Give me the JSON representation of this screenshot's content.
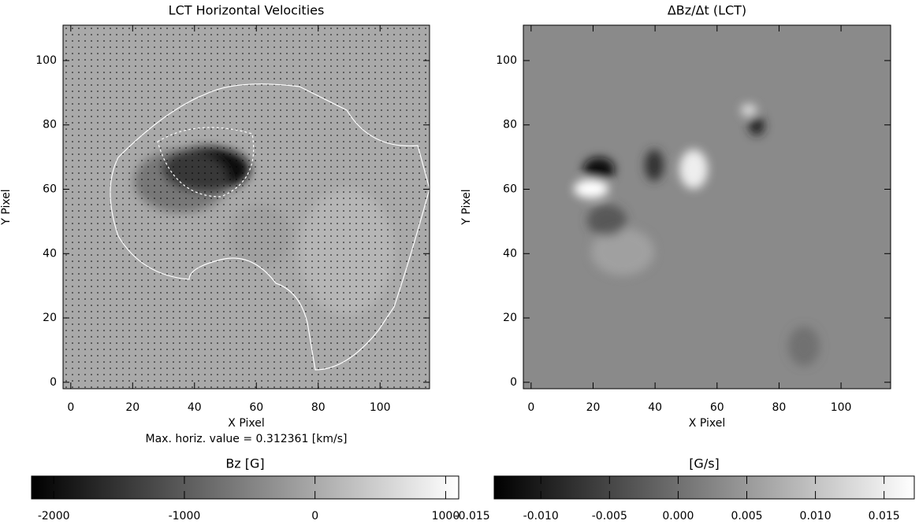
{
  "chart_data": [
    {
      "type": "image",
      "title": "LCT Horizontal Velocities",
      "x_label": "X Pixel",
      "y_label": "Y Pixel",
      "xlim": [
        -2.5,
        116
      ],
      "ylim": [
        -2,
        111
      ],
      "xticks": [
        0,
        20,
        40,
        60,
        80,
        100
      ],
      "yticks": [
        0,
        20,
        40,
        60,
        80,
        100
      ],
      "annotation": "Max. horiz. value = 0.312361 [km/s]",
      "colorbar": {
        "label": "Bz [G]",
        "lim": [
          -2170,
          1100
        ],
        "ticks": [
          -2000,
          -1000,
          0,
          1000
        ]
      }
    },
    {
      "type": "image",
      "title": "ΔBz/Δt (LCT)",
      "x_label": "X Pixel",
      "y_label": "Y Pixel",
      "xlim": [
        -2.5,
        116
      ],
      "ylim": [
        -2,
        111
      ],
      "xticks": [
        0,
        20,
        40,
        60,
        80,
        100
      ],
      "yticks": [
        0,
        20,
        40,
        60,
        80,
        100
      ],
      "colorbar": {
        "label": "[G/s]",
        "lim": [
          -0.0134,
          0.0172
        ],
        "ticks": [
          -0.015,
          {
            "value": -0.01,
            "label": "-0.010"
          },
          -0.005,
          {
            "value": 0,
            "label": "0.000"
          },
          0.005,
          {
            "value": 0.01,
            "label": "0.010"
          },
          0.015
        ]
      }
    }
  ]
}
